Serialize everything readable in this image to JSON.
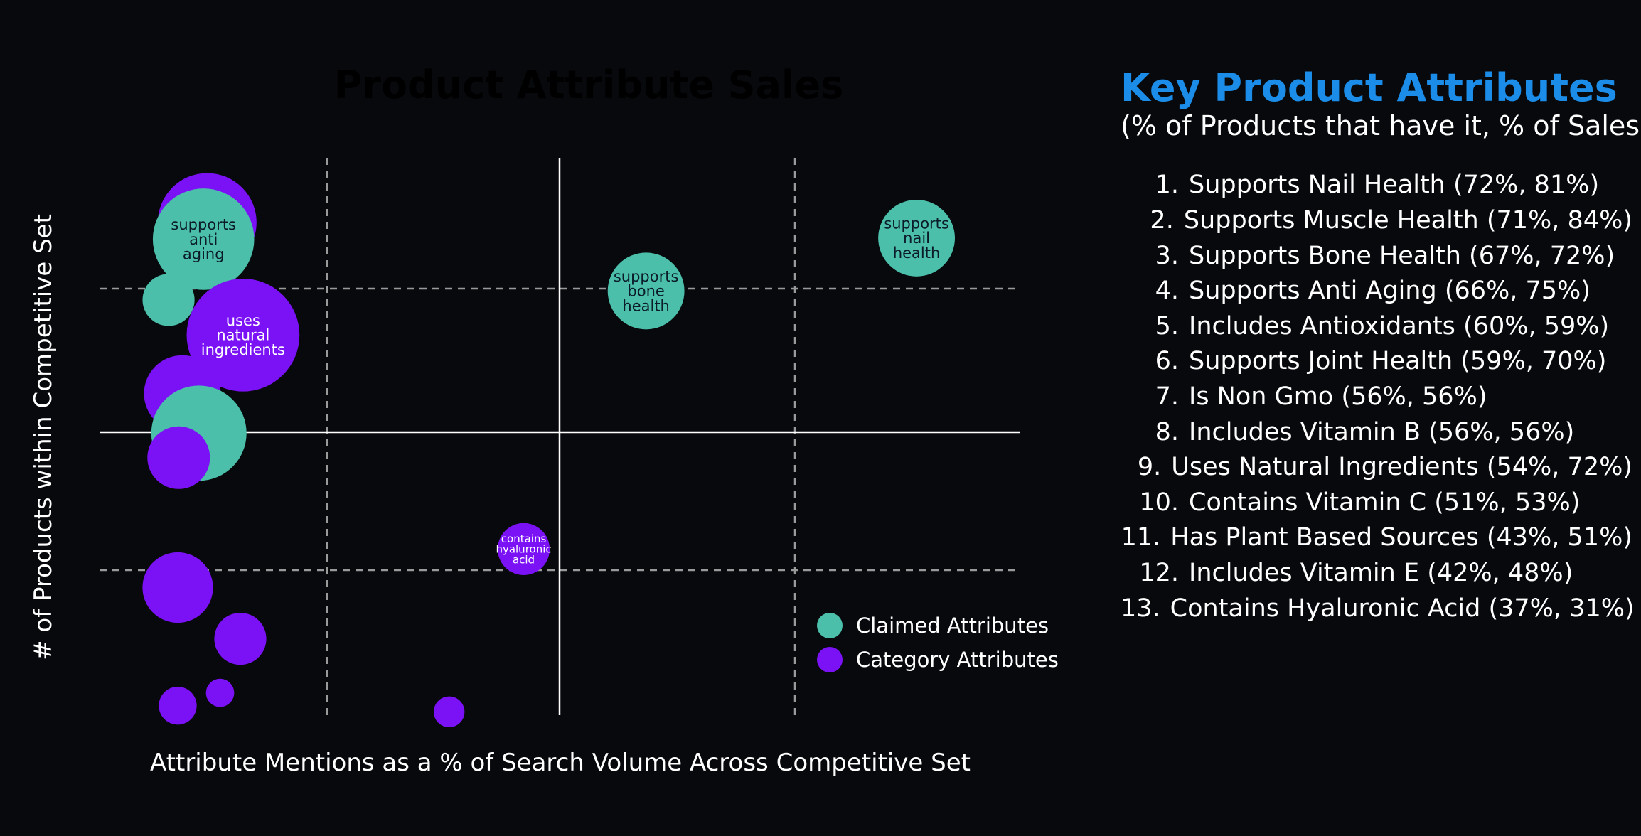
{
  "colors": {
    "background": "#08090d",
    "title": "#1b8de8",
    "claimed": "#4bbfaa",
    "category": "#7b12f5",
    "claimed_label_text": "#0b1b2a",
    "category_label_text": "#ffffff",
    "grid": "#9a9a9a",
    "axis": "#ffffff"
  },
  "chart_data": {
    "type": "bubble",
    "title": "Product Attribute Sales",
    "xlabel": "Attribute Mentions as a % of Search Volume Across Competitive Set",
    "ylabel": "# of Products within Competitive Set",
    "xlim": [
      0,
      100
    ],
    "ylim": [
      0,
      100
    ],
    "x_axis_ticks_shown": false,
    "y_axis_ticks_shown": false,
    "grid": "quadrant lines (solid center, dashed quartiles)",
    "legend_position": "bottom-right",
    "series": [
      {
        "name": "Category Attributes",
        "color": "#7b12f5",
        "points": [
          {
            "x": 11.7,
            "y": 88.4,
            "size": 11.2,
            "label": ""
          },
          {
            "x": 9.0,
            "y": 57.7,
            "size": 8.7,
            "label": ""
          },
          {
            "x": 15.6,
            "y": 68.2,
            "size": 12.8,
            "label": "uses natural ingredients"
          },
          {
            "x": 8.6,
            "y": 46.2,
            "size": 7.1,
            "label": ""
          },
          {
            "x": 46.1,
            "y": 29.8,
            "size": 5.9,
            "label": "contains hyaluronic acid"
          },
          {
            "x": 8.5,
            "y": 22.9,
            "size": 8.0,
            "label": ""
          },
          {
            "x": 15.3,
            "y": 13.7,
            "size": 5.9,
            "label": ""
          },
          {
            "x": 8.5,
            "y": 1.7,
            "size": 4.3,
            "label": ""
          },
          {
            "x": 13.1,
            "y": 4.0,
            "size": 3.2,
            "label": ""
          },
          {
            "x": 38.0,
            "y": 0.6,
            "size": 3.5,
            "label": ""
          }
        ]
      },
      {
        "name": "Claimed Attributes",
        "color": "#4bbfaa",
        "points": [
          {
            "x": 7.5,
            "y": 74.5,
            "size": 5.9,
            "label": ""
          },
          {
            "x": 11.3,
            "y": 85.4,
            "size": 11.5,
            "label": "supports anti aging"
          },
          {
            "x": 10.8,
            "y": 50.6,
            "size": 10.8,
            "label": ""
          },
          {
            "x": 59.4,
            "y": 76.1,
            "size": 8.7,
            "label": "supports bone health"
          },
          {
            "x": 88.8,
            "y": 85.6,
            "size": 8.7,
            "label": "supports nail health"
          }
        ]
      }
    ],
    "legend": [
      {
        "label": "Claimed Attributes",
        "color": "#4bbfaa"
      },
      {
        "label": "Category Attributes",
        "color": "#7b12f5"
      }
    ]
  },
  "side_panel": {
    "title": "Key Product Attributes",
    "subtitle": "(% of Products that have it, % of Sales)",
    "items": [
      {
        "num": "1.",
        "text": "Supports Nail Health (72%, 81%)"
      },
      {
        "num": "2.",
        "text": "Supports Muscle Health (71%, 84%)"
      },
      {
        "num": "3.",
        "text": "Supports Bone Health (67%, 72%)"
      },
      {
        "num": "4.",
        "text": "Supports Anti Aging (66%, 75%)"
      },
      {
        "num": "5.",
        "text": "Includes Antioxidants (60%, 59%)"
      },
      {
        "num": "6.",
        "text": "Supports Joint Health (59%, 70%)"
      },
      {
        "num": "7.",
        "text": "Is Non Gmo (56%, 56%)"
      },
      {
        "num": "8.",
        "text": "Includes Vitamin B (56%, 56%)"
      },
      {
        "num": "9.",
        "text": "Uses Natural Ingredients (54%, 72%)"
      },
      {
        "num": "10.",
        "text": "Contains Vitamin C (51%, 53%)"
      },
      {
        "num": "11.",
        "text": "Has Plant Based Sources (43%, 51%)"
      },
      {
        "num": "12.",
        "text": "Includes Vitamin E (42%, 48%)"
      },
      {
        "num": "13.",
        "text": "Contains Hyaluronic Acid (37%, 31%)"
      }
    ]
  }
}
